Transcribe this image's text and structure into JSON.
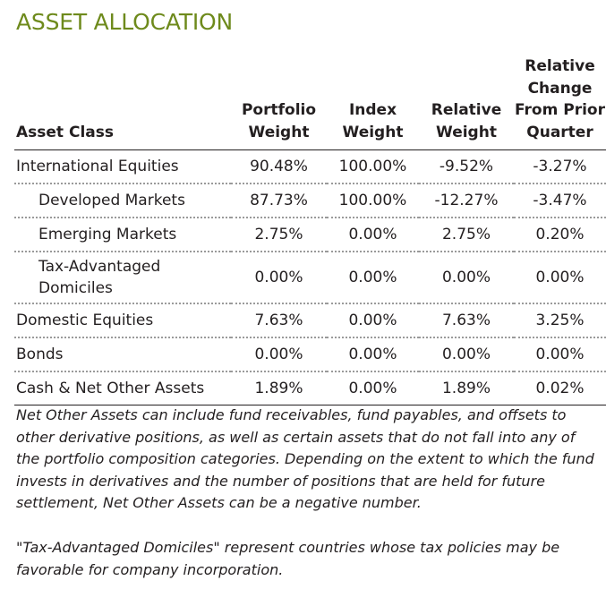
{
  "title": "ASSET ALLOCATION",
  "table": {
    "headers": {
      "asset_class": "Asset Class",
      "portfolio_weight": "Portfolio Weight",
      "index_weight": "Index Weight",
      "relative_weight": "Relative Weight",
      "relative_change": "Relative Change From Prior Quarter"
    },
    "rows": [
      {
        "label": "International Equities",
        "portfolio": "90.48%",
        "index": "100.00%",
        "relative": "-9.52%",
        "change": "-3.27%"
      },
      {
        "label": "Developed Markets",
        "portfolio": "87.73%",
        "index": "100.00%",
        "relative": "-12.27%",
        "change": "-3.47%"
      },
      {
        "label": "Emerging Markets",
        "portfolio": "2.75%",
        "index": "0.00%",
        "relative": "2.75%",
        "change": "0.20%"
      },
      {
        "label": "Tax-Advantaged Domiciles",
        "portfolio": "0.00%",
        "index": "0.00%",
        "relative": "0.00%",
        "change": "0.00%"
      },
      {
        "label": "Domestic Equities",
        "portfolio": "7.63%",
        "index": "0.00%",
        "relative": "7.63%",
        "change": "3.25%"
      },
      {
        "label": "Bonds",
        "portfolio": "0.00%",
        "index": "0.00%",
        "relative": "0.00%",
        "change": "0.00%"
      },
      {
        "label": "Cash & Net Other Assets",
        "portfolio": "1.89%",
        "index": "0.00%",
        "relative": "1.89%",
        "change": "0.02%"
      }
    ]
  },
  "notes": {
    "net_other_assets": "Net Other Assets can include fund receivables, fund payables, and offsets to other derivative positions, as well as certain assets that do not fall into any of the portfolio composition categories. Depending on the extent to which the fund invests in derivatives and the number of positions that are held for future settlement, Net Other Assets can be a negative number.",
    "tax_advantaged": "\"Tax-Advantaged Domiciles\" represent countries whose tax policies may be favorable for company incorporation."
  }
}
